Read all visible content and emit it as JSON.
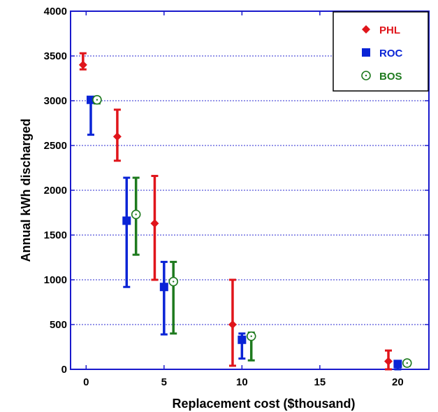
{
  "chart_data": {
    "type": "scatter",
    "title": "",
    "xlabel": "Replacement cost ($thousand)",
    "ylabel": "Annual kWh discharged",
    "xlim": [
      -1,
      22
    ],
    "ylim": [
      0,
      4000
    ],
    "xticks": [
      0,
      5,
      10,
      15,
      20
    ],
    "yticks": [
      0,
      500,
      1000,
      1500,
      2000,
      2500,
      3000,
      3500,
      4000
    ],
    "xtick_labels": [
      "0",
      "5",
      "10",
      "15",
      "20"
    ],
    "ytick_labels": [
      "0",
      "500",
      "1000",
      "1500",
      "2000",
      "2500",
      "3000",
      "3500",
      "4000"
    ],
    "grid": "horizontal dotted",
    "legend_position": "top-right",
    "series": [
      {
        "name": "PHL",
        "color": "#e0151b",
        "marker": "diamond",
        "points": [
          {
            "x": -0.2,
            "y": 3400,
            "low": 3350,
            "high": 3530
          },
          {
            "x": 2.0,
            "y": 2600,
            "low": 2330,
            "high": 2900
          },
          {
            "x": 4.4,
            "y": 1630,
            "low": 1000,
            "high": 2160
          },
          {
            "x": 9.4,
            "y": 500,
            "low": 40,
            "high": 1000
          },
          {
            "x": 19.4,
            "y": 90,
            "low": 0,
            "high": 210
          }
        ]
      },
      {
        "name": "ROC",
        "color": "#0a24d6",
        "marker": "square",
        "points": [
          {
            "x": 0.3,
            "y": 3010,
            "low": 2620,
            "high": 3030
          },
          {
            "x": 2.6,
            "y": 1660,
            "low": 920,
            "high": 2140
          },
          {
            "x": 5.0,
            "y": 920,
            "low": 390,
            "high": 1200
          },
          {
            "x": 10.0,
            "y": 330,
            "low": 120,
            "high": 400
          },
          {
            "x": 20.0,
            "y": 60,
            "low": 0,
            "high": 80
          }
        ]
      },
      {
        "name": "BOS",
        "color": "#1e7a1e",
        "marker": "circle-dot",
        "points": [
          {
            "x": 0.7,
            "y": 3010,
            "low": 2970,
            "high": 3040
          },
          {
            "x": 3.2,
            "y": 1730,
            "low": 1280,
            "high": 2140
          },
          {
            "x": 5.6,
            "y": 980,
            "low": 400,
            "high": 1200
          },
          {
            "x": 10.6,
            "y": 370,
            "low": 100,
            "high": 410
          },
          {
            "x": 20.6,
            "y": 70,
            "low": 40,
            "high": 90
          }
        ]
      }
    ]
  }
}
